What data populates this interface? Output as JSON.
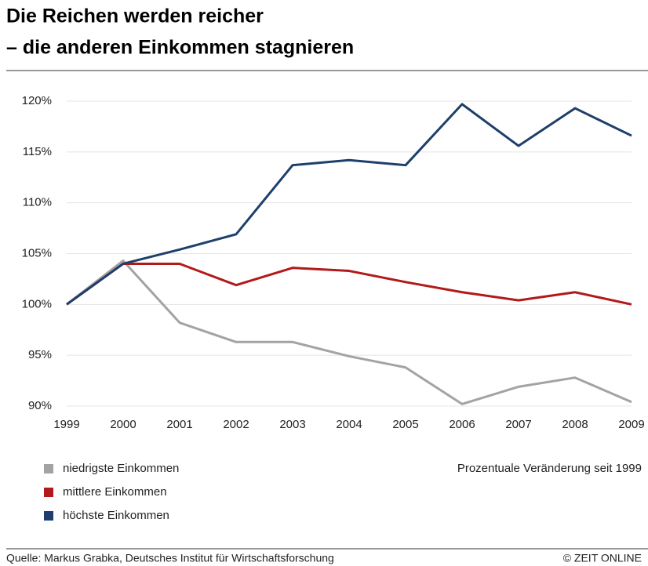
{
  "chart_data": {
    "type": "line",
    "title": [
      "Die Reichen werden reicher",
      "– die anderen Einkommen stagnieren"
    ],
    "categories": [
      "1999",
      "2000",
      "2001",
      "2002",
      "2003",
      "2004",
      "2005",
      "2006",
      "2007",
      "2008",
      "2009"
    ],
    "series": [
      {
        "name": "niedrigste Einkommen",
        "color": "#a3a3a3",
        "values": [
          100,
          104.3,
          98.2,
          96.3,
          96.3,
          94.9,
          93.8,
          90.2,
          91.9,
          92.8,
          90.4
        ]
      },
      {
        "name": "mittlere Einkommen",
        "color": "#b21a1a",
        "values": [
          100,
          104,
          104,
          101.9,
          103.6,
          103.3,
          102.2,
          101.2,
          100.4,
          101.2,
          100
        ]
      },
      {
        "name": "höchste Einkommen",
        "color": "#1e3f6c",
        "values": [
          100,
          104,
          105.4,
          106.9,
          113.7,
          114.2,
          113.7,
          119.7,
          115.6,
          119.3,
          116.6
        ]
      }
    ],
    "ylim": [
      90,
      120
    ],
    "yticks": [
      {
        "value": 90,
        "label": "90%"
      },
      {
        "value": 95,
        "label": "95%"
      },
      {
        "value": 100,
        "label": "100%"
      },
      {
        "value": 105,
        "label": "105%"
      },
      {
        "value": 110,
        "label": "110%"
      },
      {
        "value": 115,
        "label": "115%"
      },
      {
        "value": 120,
        "label": "120%"
      }
    ],
    "grid": true,
    "annotation": "Prozentuale Veränderung seit 1999",
    "source": "Quelle: Markus Grabka, Deutsches Institut für Wirtschaftsforschung",
    "credit": "© ZEIT ONLINE"
  }
}
